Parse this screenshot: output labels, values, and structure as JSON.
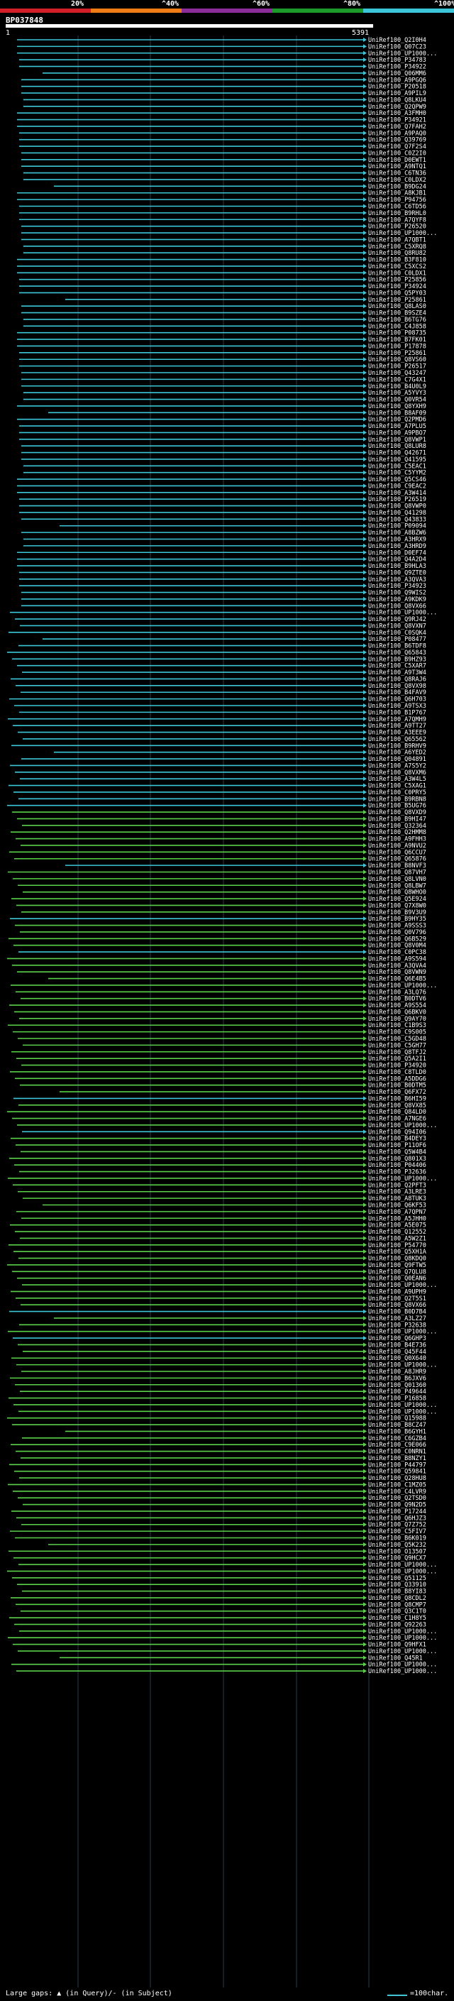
{
  "header": {
    "query_id": "BP037848",
    "start": "1",
    "end": "5391"
  },
  "scale": {
    "labels": [
      "20%",
      "^40%",
      "^60%",
      "^80%",
      "^100%"
    ],
    "colors": [
      "#d21f27",
      "#f07c18",
      "#8b2c9a",
      "#1c9a2a",
      "#3cc6d8"
    ]
  },
  "colors": {
    "cyan": "#3cc6d8",
    "green": "#5ad04a"
  },
  "footer": {
    "text": "Large gaps: ▲ (in Query)/- (in Subject)",
    "legend": "=100char."
  },
  "hits": [
    {
      "label": "UniRef100_Q2I0H4",
      "c": "c"
    },
    {
      "label": "UniRef100_Q07C23",
      "c": "c"
    },
    {
      "label": "UniRef100_UP1000...",
      "c": "c"
    },
    {
      "label": "UniRef100_P34783",
      "c": "c"
    },
    {
      "label": "UniRef100_P34922",
      "c": "c"
    },
    {
      "label": "UniRef100_Q06MM6",
      "c": "c"
    },
    {
      "label": "UniRef100_A9PGQ6",
      "c": "c"
    },
    {
      "label": "UniRef100_P20518",
      "c": "c"
    },
    {
      "label": "UniRef100_A9PIL9",
      "c": "c"
    },
    {
      "label": "UniRef100_Q8LKU4",
      "c": "c"
    },
    {
      "label": "UniRef100_Q2QPW9",
      "c": "c"
    },
    {
      "label": "UniRef100_A3FMH0",
      "c": "c"
    },
    {
      "label": "UniRef100_P34921",
      "c": "c"
    },
    {
      "label": "UniRef100_Q7FAH2",
      "c": "c"
    },
    {
      "label": "UniRef100_A9PAQ0",
      "c": "c"
    },
    {
      "label": "UniRef100_Q39769",
      "c": "c"
    },
    {
      "label": "UniRef100_Q7F2S4",
      "c": "c"
    },
    {
      "label": "UniRef100_C0Z2I0",
      "c": "c"
    },
    {
      "label": "UniRef100_D0EWT1",
      "c": "c"
    },
    {
      "label": "UniRef100_A9NTQ1",
      "c": "c"
    },
    {
      "label": "UniRef100_C6TN36",
      "c": "c"
    },
    {
      "label": "UniRef100_C0LDX2",
      "c": "c"
    },
    {
      "label": "UniRef100_B9DG24",
      "c": "c"
    },
    {
      "label": "UniRef100_A8KJB1",
      "c": "c"
    },
    {
      "label": "UniRef100_P94756",
      "c": "c"
    },
    {
      "label": "UniRef100_C6TD56",
      "c": "c"
    },
    {
      "label": "UniRef100_B9RHL0",
      "c": "c"
    },
    {
      "label": "UniRef100_A7QYF8",
      "c": "c"
    },
    {
      "label": "UniRef100_P26520",
      "c": "c"
    },
    {
      "label": "UniRef100_UP1000...",
      "c": "c"
    },
    {
      "label": "UniRef100_A7QBT1",
      "c": "c"
    },
    {
      "label": "UniRef100_C5XRQ8",
      "c": "c"
    },
    {
      "label": "UniRef100_Q8RU82",
      "c": "c"
    },
    {
      "label": "UniRef100_B3F810",
      "c": "c"
    },
    {
      "label": "UniRef100_C5XCS2",
      "c": "c"
    },
    {
      "label": "UniRef100_C0LDX1",
      "c": "c"
    },
    {
      "label": "UniRef100_P25856",
      "c": "c"
    },
    {
      "label": "UniRef100_P34924",
      "c": "c"
    },
    {
      "label": "UniRef100_Q5PY03",
      "c": "c"
    },
    {
      "label": "UniRef100_P25861",
      "c": "c"
    },
    {
      "label": "UniRef100_Q8LAS0",
      "c": "c"
    },
    {
      "label": "UniRef100_B9SZE4",
      "c": "c"
    },
    {
      "label": "UniRef100_B6TG76",
      "c": "c"
    },
    {
      "label": "UniRef100_C4J858",
      "c": "c"
    },
    {
      "label": "UniRef100_P08735",
      "c": "c"
    },
    {
      "label": "UniRef100_B7FK01",
      "c": "c"
    },
    {
      "label": "UniRef100_P17878",
      "c": "c"
    },
    {
      "label": "UniRef100_P25861",
      "c": "c"
    },
    {
      "label": "UniRef100_Q8VS60",
      "c": "c"
    },
    {
      "label": "UniRef100_P26517",
      "c": "c"
    },
    {
      "label": "UniRef100_Q43247",
      "c": "c"
    },
    {
      "label": "UniRef100_C7G4X1",
      "c": "c"
    },
    {
      "label": "UniRef100_B4U0L9",
      "c": "c"
    },
    {
      "label": "UniRef100_A5YVY3",
      "c": "c"
    },
    {
      "label": "UniRef100_Q0VR54",
      "c": "c"
    },
    {
      "label": "UniRef100_Q8YXH9",
      "c": "c"
    },
    {
      "label": "UniRef100_B8AF09",
      "c": "c"
    },
    {
      "label": "UniRef100_Q2PMD6",
      "c": "c"
    },
    {
      "label": "UniRef100_A7PLU5",
      "c": "c"
    },
    {
      "label": "UniRef100_A9PBO7",
      "c": "c"
    },
    {
      "label": "UniRef100_Q8VWP1",
      "c": "c"
    },
    {
      "label": "UniRef100_Q8LUR8",
      "c": "c"
    },
    {
      "label": "UniRef100_Q42671",
      "c": "c"
    },
    {
      "label": "UniRef100_Q41595",
      "c": "c"
    },
    {
      "label": "UniRef100_C5EAC1",
      "c": "c"
    },
    {
      "label": "UniRef100_C5YYM2",
      "c": "c"
    },
    {
      "label": "UniRef100_Q5CS46",
      "c": "c"
    },
    {
      "label": "UniRef100_C9EAC2",
      "c": "c"
    },
    {
      "label": "UniRef100_A3W414",
      "c": "c"
    },
    {
      "label": "UniRef100_P26519",
      "c": "c"
    },
    {
      "label": "UniRef100_Q8VWP0",
      "c": "c"
    },
    {
      "label": "UniRef100_Q41298",
      "c": "c"
    },
    {
      "label": "UniRef100_Q43833",
      "c": "c"
    },
    {
      "label": "UniRef100_P09094",
      "c": "c"
    },
    {
      "label": "UniRef100_A8BZW6",
      "c": "c"
    },
    {
      "label": "UniRef100_A3HRX9",
      "c": "c"
    },
    {
      "label": "UniRef100_A3HRD9",
      "c": "c"
    },
    {
      "label": "UniRef100_D0EF74",
      "c": "c"
    },
    {
      "label": "UniRef100_Q4A2D4",
      "c": "c"
    },
    {
      "label": "UniRef100_B9HLA3",
      "c": "c"
    },
    {
      "label": "UniRef100_Q9ZTE0",
      "c": "c"
    },
    {
      "label": "UniRef100_A3QVA3",
      "c": "c"
    },
    {
      "label": "UniRef100_P34923",
      "c": "c"
    },
    {
      "label": "UniRef100_Q9WIS2",
      "c": "c"
    },
    {
      "label": "UniRef100_A9KDK9",
      "c": "c"
    },
    {
      "label": "UniRef100_Q8VX66",
      "c": "c"
    },
    {
      "label": "UniRef100_UP1000...",
      "c": "c"
    },
    {
      "label": "UniRef100_Q9RJ42",
      "c": "c"
    },
    {
      "label": "UniRef100_Q8VXN7",
      "c": "c"
    },
    {
      "label": "UniRef100_C0SQK4",
      "c": "c"
    },
    {
      "label": "UniRef100_P08477",
      "c": "c"
    },
    {
      "label": "UniRef100_B6TDF8",
      "c": "c"
    },
    {
      "label": "UniRef100_Q65843",
      "c": "c"
    },
    {
      "label": "UniRef100_B9HZ93",
      "c": "c"
    },
    {
      "label": "UniRef100_C5XAR7",
      "c": "c"
    },
    {
      "label": "UniRef100_A9T3W4",
      "c": "c"
    },
    {
      "label": "UniRef100_Q8RAJ6",
      "c": "c"
    },
    {
      "label": "UniRef100_Q8VX98",
      "c": "c"
    },
    {
      "label": "UniRef100_B4FAV9",
      "c": "c"
    },
    {
      "label": "UniRef100_Q6H703",
      "c": "c"
    },
    {
      "label": "UniRef100_A9TSX3",
      "c": "c"
    },
    {
      "label": "UniRef100_B1P767",
      "c": "c"
    },
    {
      "label": "UniRef100_A7QMH9",
      "c": "c"
    },
    {
      "label": "UniRef100_A9TT27",
      "c": "c"
    },
    {
      "label": "UniRef100_A3EEE9",
      "c": "c"
    },
    {
      "label": "UniRef100_Q65562",
      "c": "c"
    },
    {
      "label": "UniRef100_B9RHV9",
      "c": "c"
    },
    {
      "label": "UniRef100_A6YED2",
      "c": "c"
    },
    {
      "label": "UniRef100_Q04891",
      "c": "c"
    },
    {
      "label": "UniRef100_A7S5Y2",
      "c": "c"
    },
    {
      "label": "UniRef100_Q8VXM6",
      "c": "c"
    },
    {
      "label": "UniRef100_A3W4L5",
      "c": "c"
    },
    {
      "label": "UniRef100_C5XAG1",
      "c": "c"
    },
    {
      "label": "UniRef100_C0PRY5",
      "c": "c"
    },
    {
      "label": "UniRef100_B9RBN8",
      "c": "c"
    },
    {
      "label": "UniRef100_B5UG76",
      "c": "c"
    },
    {
      "label": "UniRef100_Q8VXD9",
      "c": "g"
    },
    {
      "label": "UniRef100_B9HI47",
      "c": "g"
    },
    {
      "label": "UniRef100_Q32364",
      "c": "g"
    },
    {
      "label": "UniRef100_Q2HMM8",
      "c": "g"
    },
    {
      "label": "UniRef100_A9FHH3",
      "c": "g"
    },
    {
      "label": "UniRef100_A9NVU2",
      "c": "g"
    },
    {
      "label": "UniRef100_Q6CCU7",
      "c": "g"
    },
    {
      "label": "UniRef100_Q65876",
      "c": "g"
    },
    {
      "label": "UniRef100_B8NVF3",
      "c": "c"
    },
    {
      "label": "UniRef100_Q87VH7",
      "c": "g"
    },
    {
      "label": "UniRef100_Q8LVN0",
      "c": "g"
    },
    {
      "label": "UniRef100_Q8LBW7",
      "c": "g"
    },
    {
      "label": "UniRef100_Q8WHO0",
      "c": "g"
    },
    {
      "label": "UniRef100_Q5E924",
      "c": "g"
    },
    {
      "label": "UniRef100_Q7X8W0",
      "c": "g"
    },
    {
      "label": "UniRef100_B9V3U9",
      "c": "g"
    },
    {
      "label": "UniRef100_B9HY35",
      "c": "c"
    },
    {
      "label": "UniRef100_A9SSS3",
      "c": "g"
    },
    {
      "label": "UniRef100_Q0V796",
      "c": "g"
    },
    {
      "label": "UniRef100_Q6B529",
      "c": "g"
    },
    {
      "label": "UniRef100_Q8V0M4",
      "c": "g"
    },
    {
      "label": "UniRef100_C0PC38",
      "c": "c"
    },
    {
      "label": "UniRef100_A9S594",
      "c": "g"
    },
    {
      "label": "UniRef100_A3QVA4",
      "c": "g"
    },
    {
      "label": "UniRef100_Q8VWN9",
      "c": "g"
    },
    {
      "label": "UniRef100_Q6E4B5",
      "c": "g"
    },
    {
      "label": "UniRef100_UP1000...",
      "c": "g"
    },
    {
      "label": "UniRef100_A3LQ76",
      "c": "g"
    },
    {
      "label": "UniRef100_B0DTV6",
      "c": "g"
    },
    {
      "label": "UniRef100_A9S554",
      "c": "g"
    },
    {
      "label": "UniRef100_Q6BKV0",
      "c": "g"
    },
    {
      "label": "UniRef100_Q9AY70",
      "c": "g"
    },
    {
      "label": "UniRef100_C1B9S3",
      "c": "g"
    },
    {
      "label": "UniRef100_C9S005",
      "c": "g"
    },
    {
      "label": "UniRef100_C5GD48",
      "c": "g"
    },
    {
      "label": "UniRef100_C5GH77",
      "c": "g"
    },
    {
      "label": "UniRef100_Q8TFJ2",
      "c": "g"
    },
    {
      "label": "UniRef100_Q5A2I1",
      "c": "g"
    },
    {
      "label": "UniRef100_P34920",
      "c": "g"
    },
    {
      "label": "UniRef100_C8TLD0",
      "c": "g"
    },
    {
      "label": "UniRef100_A5DDG6",
      "c": "g"
    },
    {
      "label": "UniRef100_B0DTM5",
      "c": "g"
    },
    {
      "label": "UniRef100_Q6FX72",
      "c": "g"
    },
    {
      "label": "UniRef100_B6HI59",
      "c": "c"
    },
    {
      "label": "UniRef100_Q8VX85",
      "c": "g"
    },
    {
      "label": "UniRef100_Q84LD0",
      "c": "g"
    },
    {
      "label": "UniRef100_A7NGE6",
      "c": "g"
    },
    {
      "label": "UniRef100_UP1000...",
      "c": "g"
    },
    {
      "label": "UniRef100_Q94I06",
      "c": "c"
    },
    {
      "label": "UniRef100_B4DEY3",
      "c": "g"
    },
    {
      "label": "UniRef100_P11OF6",
      "c": "g"
    },
    {
      "label": "UniRef100_Q5W4B4",
      "c": "g"
    },
    {
      "label": "UniRef100_Q801X3",
      "c": "g"
    },
    {
      "label": "UniRef100_P04406",
      "c": "g"
    },
    {
      "label": "UniRef100_P32636",
      "c": "g"
    },
    {
      "label": "UniRef100_UP1000...",
      "c": "g"
    },
    {
      "label": "UniRef100_Q2PFT3",
      "c": "g"
    },
    {
      "label": "UniRef100_A3LRE3",
      "c": "g"
    },
    {
      "label": "UniRef100_A8TUK3",
      "c": "g"
    },
    {
      "label": "UniRef100_Q6KF53",
      "c": "g"
    },
    {
      "label": "UniRef100_A7QPN7",
      "c": "g"
    },
    {
      "label": "UniRef100_A5JHH0",
      "c": "g"
    },
    {
      "label": "UniRef100_A5E075",
      "c": "g"
    },
    {
      "label": "UniRef100_Q12552",
      "c": "g"
    },
    {
      "label": "UniRef100_A5W2Z1",
      "c": "g"
    },
    {
      "label": "UniRef100_P54770",
      "c": "g"
    },
    {
      "label": "UniRef100_Q5XH1A",
      "c": "g"
    },
    {
      "label": "UniRef100_Q8KDQ0",
      "c": "g"
    },
    {
      "label": "UniRef100_Q9FTW5",
      "c": "g"
    },
    {
      "label": "UniRef100_Q7QLU8",
      "c": "g"
    },
    {
      "label": "UniRef100_Q0EAN6",
      "c": "g"
    },
    {
      "label": "UniRef100_UP1000...",
      "c": "g"
    },
    {
      "label": "UniRef100_A9UPH9",
      "c": "g"
    },
    {
      "label": "UniRef100_Q2T5S1",
      "c": "g"
    },
    {
      "label": "UniRef100_Q8VX66",
      "c": "g"
    },
    {
      "label": "UniRef100_B0D7B4",
      "c": "c"
    },
    {
      "label": "UniRef100_A3LZ27",
      "c": "g"
    },
    {
      "label": "UniRef100_P32638",
      "c": "g"
    },
    {
      "label": "UniRef100_UP1000...",
      "c": "g"
    },
    {
      "label": "UniRef100_Q6GHP3",
      "c": "c"
    },
    {
      "label": "UniRef100_B4E736",
      "c": "g"
    },
    {
      "label": "UniRef100_Q45F44",
      "c": "g"
    },
    {
      "label": "UniRef100_Q0X640",
      "c": "g"
    },
    {
      "label": "UniRef100_UP1000...",
      "c": "g"
    },
    {
      "label": "UniRef100_A8JHR9",
      "c": "g"
    },
    {
      "label": "UniRef100_B6JXV6",
      "c": "g"
    },
    {
      "label": "UniRef100_Q01360",
      "c": "g"
    },
    {
      "label": "UniRef100_P49644",
      "c": "g"
    },
    {
      "label": "UniRef100_P16858",
      "c": "g"
    },
    {
      "label": "UniRef100_UP1000...",
      "c": "g"
    },
    {
      "label": "UniRef100_UP1000...",
      "c": "g"
    },
    {
      "label": "UniRef100_Q15988",
      "c": "g"
    },
    {
      "label": "UniRef100_B8CZ47",
      "c": "g"
    },
    {
      "label": "UniRef100_B6GYH1",
      "c": "g"
    },
    {
      "label": "UniRef100_C6GZB4",
      "c": "g"
    },
    {
      "label": "UniRef100_C9E066",
      "c": "g"
    },
    {
      "label": "UniRef100_C0NRN1",
      "c": "g"
    },
    {
      "label": "UniRef100_B8NZY1",
      "c": "g"
    },
    {
      "label": "UniRef100_P44797",
      "c": "g"
    },
    {
      "label": "UniRef100_Q59841",
      "c": "g"
    },
    {
      "label": "UniRef100_Q28HU8",
      "c": "g"
    },
    {
      "label": "UniRef100_C1MZ05",
      "c": "g"
    },
    {
      "label": "UniRef100_C4LVR9",
      "c": "g"
    },
    {
      "label": "UniRef100_Q2TSD0",
      "c": "g"
    },
    {
      "label": "UniRef100_Q9N2D5",
      "c": "g"
    },
    {
      "label": "UniRef100_P17244",
      "c": "g"
    },
    {
      "label": "UniRef100_Q6HJZ3",
      "c": "g"
    },
    {
      "label": "UniRef100_Q7Z752",
      "c": "g"
    },
    {
      "label": "UniRef100_C5FIV7",
      "c": "g"
    },
    {
      "label": "UniRef100_B6K019",
      "c": "g"
    },
    {
      "label": "UniRef100_Q5K232",
      "c": "g"
    },
    {
      "label": "UniRef100_O13507",
      "c": "g"
    },
    {
      "label": "UniRef100_Q9HCX7",
      "c": "g"
    },
    {
      "label": "UniRef100_UP1000...",
      "c": "g"
    },
    {
      "label": "UniRef100_UP1000...",
      "c": "g"
    },
    {
      "label": "UniRef100_Q51125",
      "c": "g"
    },
    {
      "label": "UniRef100_Q33910",
      "c": "g"
    },
    {
      "label": "UniRef100_B8YI83",
      "c": "g"
    },
    {
      "label": "UniRef100_Q8CDL2",
      "c": "g"
    },
    {
      "label": "UniRef100_Q8CMP7",
      "c": "g"
    },
    {
      "label": "UniRef100_Q3C1T0",
      "c": "g"
    },
    {
      "label": "UniRef100_C1H8Y5",
      "c": "g"
    },
    {
      "label": "UniRef100_Q92263",
      "c": "g"
    },
    {
      "label": "UniRef100_UP1000...",
      "c": "g"
    },
    {
      "label": "UniRef100_UP1000...",
      "c": "g"
    },
    {
      "label": "UniRef100_Q9HFX1",
      "c": "g"
    },
    {
      "label": "UniRef100_UP1000...",
      "c": "g"
    },
    {
      "label": "UniRef100_Q45R1",
      "c": "g"
    },
    {
      "label": "UniRef100_UP1000...",
      "c": "g"
    },
    {
      "label": "UniRef100_UP1000...",
      "c": "g"
    }
  ]
}
